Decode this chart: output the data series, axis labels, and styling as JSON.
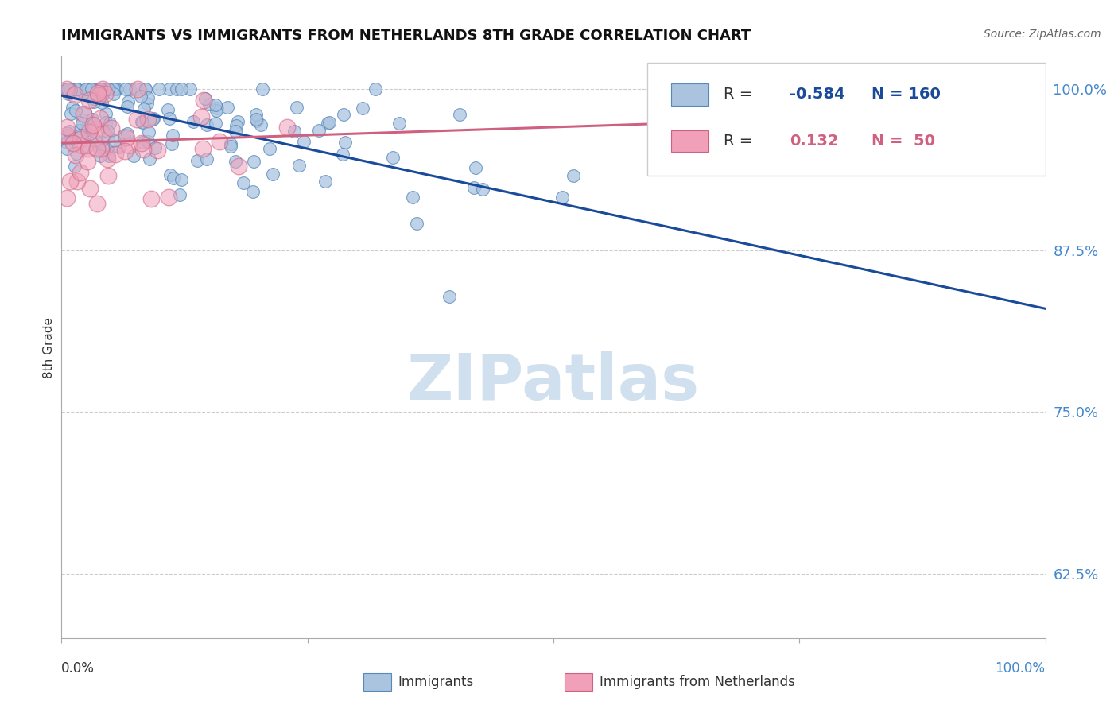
{
  "title": "IMMIGRANTS VS IMMIGRANTS FROM NETHERLANDS 8TH GRADE CORRELATION CHART",
  "source": "Source: ZipAtlas.com",
  "ylabel": "8th Grade",
  "legend_blue_R": "-0.584",
  "legend_blue_N": "160",
  "legend_pink_R": "0.132",
  "legend_pink_N": "50",
  "blue_color": "#aac4e0",
  "blue_edge_color": "#5588bb",
  "blue_line_color": "#1a4a9a",
  "pink_color": "#f0a0b8",
  "pink_edge_color": "#d06080",
  "pink_line_color": "#d06080",
  "watermark_color": "#d0e0ee",
  "y_ticks": [
    0.625,
    0.75,
    0.875,
    1.0
  ],
  "y_tick_labels": [
    "62.5%",
    "75.0%",
    "87.5%",
    "100.0%"
  ],
  "xlim": [
    0.0,
    1.0
  ],
  "ylim": [
    0.575,
    1.025
  ],
  "title_fontsize": 13,
  "background_color": "#ffffff",
  "grid_color": "#cccccc",
  "tick_color": "#4488cc",
  "blue_intercept": 0.995,
  "blue_slope": -0.165,
  "pink_intercept": 0.958,
  "pink_slope": 0.025
}
